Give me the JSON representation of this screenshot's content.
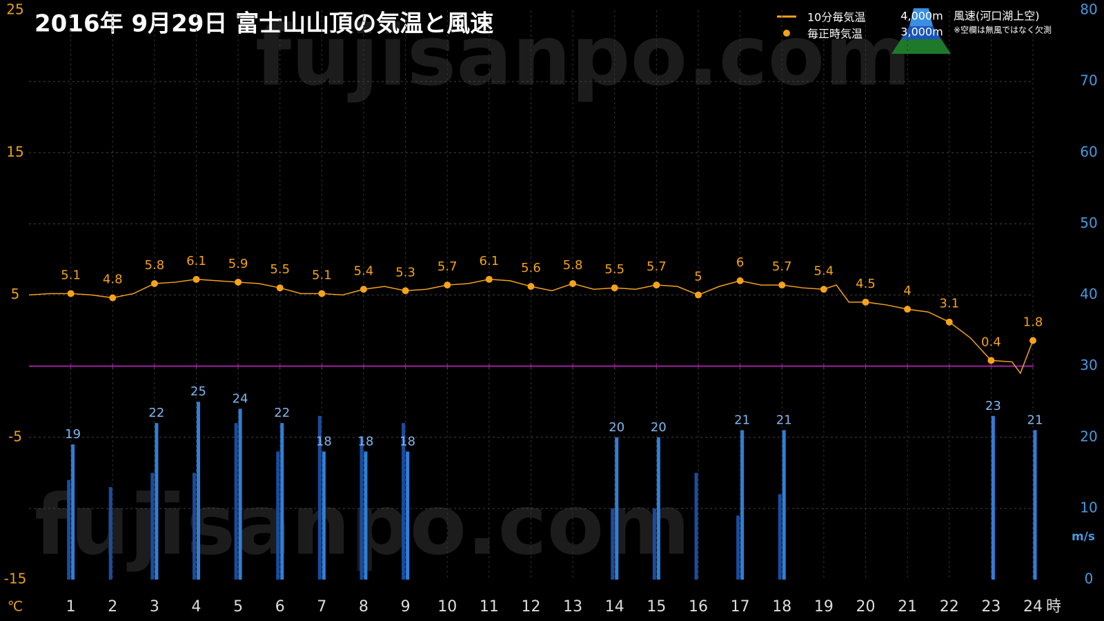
{
  "chart_data": {
    "type": "line",
    "title": "2016年  9月29日   富士山山頂の気温と風速",
    "watermark": "fujisanpo.com",
    "xlim": [
      0,
      24
    ],
    "xticks": [
      1,
      2,
      3,
      4,
      5,
      6,
      7,
      8,
      9,
      10,
      11,
      12,
      13,
      14,
      15,
      16,
      17,
      18,
      19,
      20,
      21,
      22,
      23,
      24
    ],
    "x_unit": "時",
    "ylim": [
      -15,
      25
    ],
    "yticks": [
      -15,
      -5,
      5,
      15,
      25
    ],
    "y_unit": "℃",
    "y2lim": [
      0,
      80
    ],
    "y2ticks": [
      0,
      10,
      20,
      30,
      40,
      50,
      60,
      70,
      80
    ],
    "y2_unit": "m/s",
    "grid": true,
    "zero_line_color": "#a020a0",
    "wind_title": "風速(河口湖上空)",
    "note": "※空欄は無風ではなく欠測",
    "series": [
      {
        "name": "10分毎気温",
        "type": "line",
        "color": "#f5a31a",
        "x": [
          0,
          0.5,
          1,
          1.5,
          2,
          2.5,
          3,
          3.5,
          4,
          4.5,
          5,
          5.5,
          6,
          6.5,
          7,
          7.5,
          8,
          8.5,
          9,
          9.5,
          10,
          10.5,
          11,
          11.5,
          12,
          12.5,
          13,
          13.5,
          14,
          14.5,
          15,
          15.5,
          16,
          16.5,
          17,
          17.5,
          18,
          18.5,
          19,
          19.3,
          19.6,
          20,
          20.5,
          21,
          21.5,
          22,
          22.5,
          23,
          23.5,
          23.7,
          24
        ],
        "values": [
          5.0,
          5.1,
          5.1,
          5.0,
          4.8,
          5.1,
          5.8,
          5.9,
          6.1,
          6.0,
          5.9,
          5.8,
          5.5,
          5.1,
          5.1,
          5.0,
          5.4,
          5.6,
          5.3,
          5.4,
          5.7,
          5.8,
          6.1,
          6.0,
          5.6,
          5.3,
          5.8,
          5.4,
          5.5,
          5.4,
          5.7,
          5.6,
          5.0,
          5.6,
          6.0,
          5.7,
          5.7,
          5.5,
          5.4,
          5.7,
          4.5,
          4.5,
          4.3,
          4.0,
          3.8,
          3.1,
          2.0,
          0.4,
          0.3,
          -0.5,
          1.8
        ]
      },
      {
        "name": "毎正時気温",
        "type": "scatter",
        "color": "#f5a31a",
        "x": [
          1,
          2,
          3,
          4,
          5,
          6,
          7,
          8,
          9,
          10,
          11,
          12,
          13,
          14,
          15,
          16,
          17,
          18,
          19,
          20,
          21,
          22,
          23,
          24
        ],
        "values": [
          5.1,
          4.8,
          5.8,
          6.1,
          5.9,
          5.5,
          5.1,
          5.4,
          5.3,
          5.7,
          6.1,
          5.6,
          5.8,
          5.5,
          5.7,
          5,
          6,
          5.7,
          5.4,
          4.5,
          4,
          3.1,
          0.4,
          1.8
        ]
      },
      {
        "name": "4,000m",
        "type": "bar",
        "axis": "y2",
        "color": "#2f7fd8",
        "x": [
          1,
          2,
          3,
          4,
          5,
          6,
          7,
          8,
          9,
          10,
          11,
          12,
          13,
          14,
          15,
          16,
          17,
          18,
          19,
          20,
          21,
          22,
          23,
          24
        ],
        "values": [
          19,
          null,
          22,
          25,
          24,
          22,
          18,
          18,
          18,
          null,
          null,
          null,
          null,
          20,
          20,
          null,
          21,
          21,
          null,
          null,
          null,
          null,
          23,
          21
        ]
      },
      {
        "name": "3,000m",
        "type": "bar",
        "axis": "y2",
        "color": "#1b4c9e",
        "x": [
          1,
          2,
          3,
          4,
          5,
          6,
          7,
          8,
          9,
          10,
          11,
          12,
          13,
          14,
          15,
          16,
          17,
          18,
          19,
          20,
          21,
          22,
          23,
          24
        ],
        "values": [
          14,
          13,
          15,
          15,
          22,
          18,
          23,
          20,
          22,
          null,
          null,
          null,
          null,
          10,
          10,
          15,
          9,
          12,
          null,
          null,
          null,
          null,
          null,
          null
        ]
      }
    ]
  }
}
